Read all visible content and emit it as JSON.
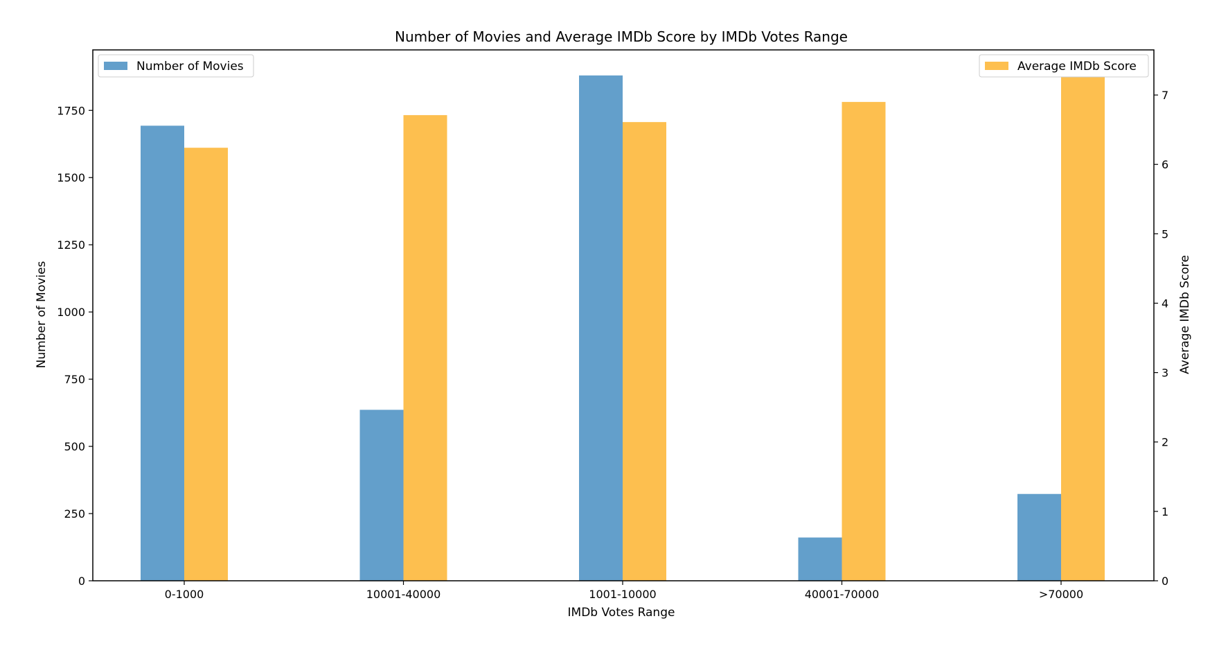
{
  "chart_data": {
    "type": "bar",
    "title": "Number of Movies and Average IMDb Score by IMDb Votes Range",
    "xlabel": "IMDb Votes Range",
    "ylabel_left": "Number of Movies",
    "ylabel_right": "Average IMDb Score",
    "categories": [
      "0-1000",
      "10001-40000",
      "1001-10000",
      "40001-70000",
      ">70000"
    ],
    "series": [
      {
        "name": "Number of Movies",
        "axis": "left",
        "color": "#639fcb",
        "values": [
          1693,
          636,
          1880,
          161,
          323
        ]
      },
      {
        "name": "Average IMDb Score",
        "axis": "right",
        "color": "#fdbf4f",
        "values": [
          6.24,
          6.71,
          6.61,
          6.9,
          7.3
        ]
      }
    ],
    "ylim_left": [
      0,
      1975
    ],
    "ylim_right": [
      0,
      7.65
    ],
    "yticks_left": [
      0,
      250,
      500,
      750,
      1000,
      1250,
      1500,
      1750
    ],
    "yticks_right": [
      0,
      1,
      2,
      3,
      4,
      5,
      6,
      7
    ],
    "grid": false,
    "legend_left_placement": "top-left",
    "legend_right_placement": "top-right"
  }
}
